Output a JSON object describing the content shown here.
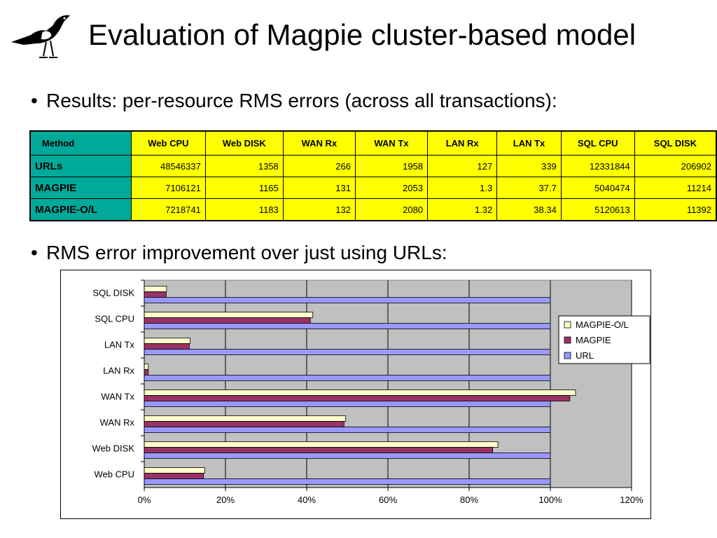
{
  "title": "Evaluation of Magpie cluster-based model",
  "bullets": {
    "results": "Results: per-resource RMS errors (across all transactions):",
    "improvement": "RMS error improvement over just using URLs:"
  },
  "bullet_glyph": "•",
  "logo_icon": "magpie-bird-icon",
  "table": {
    "columns": [
      "Method",
      "Web CPU",
      "Web DISK",
      "WAN Rx",
      "WAN Tx",
      "LAN Rx",
      "LAN Tx",
      "SQL CPU",
      "SQL DISK"
    ],
    "rows": [
      {
        "method": "URLs",
        "values": [
          "48546337",
          "1358",
          "266",
          "1958",
          "127",
          "339",
          "12331844",
          "206902"
        ]
      },
      {
        "method": "MAGPIE",
        "values": [
          "7106121",
          "1165",
          "131",
          "2053",
          "1.3",
          "37.7",
          "5040474",
          "11214"
        ]
      },
      {
        "method": "MAGPIE-O/L",
        "values": [
          "7218741",
          "1183",
          "132",
          "2080",
          "1.32",
          "38.34",
          "5120613",
          "11392"
        ]
      }
    ],
    "colors": {
      "header_bg": "#ffff00",
      "method_bg": "#00a99a",
      "cell_bg": "#ffff00"
    }
  },
  "chart_data": {
    "type": "bar",
    "orientation": "horizontal",
    "categories": [
      "Web CPU",
      "Web DISK",
      "WAN Rx",
      "WAN Tx",
      "LAN Rx",
      "LAN Tx",
      "SQL CPU",
      "SQL DISK"
    ],
    "series": [
      {
        "name": "URL",
        "color": "#9999ff",
        "values": [
          100,
          100,
          100,
          100,
          100,
          100,
          100,
          100
        ]
      },
      {
        "name": "MAGPIE",
        "color": "#993366",
        "values": [
          14.6,
          85.8,
          49.2,
          104.8,
          1.0,
          11.1,
          40.9,
          5.4
        ]
      },
      {
        "name": "MAGPIE-O/L",
        "color": "#ffffcc",
        "values": [
          14.9,
          87.1,
          49.6,
          106.2,
          1.0,
          11.3,
          41.5,
          5.5
        ]
      }
    ],
    "xlim": [
      0,
      120
    ],
    "xticks": [
      "0%",
      "20%",
      "40%",
      "60%",
      "80%",
      "100%",
      "120%"
    ],
    "grid": true,
    "plot_bg": "#c0c0c0",
    "legend": {
      "placement": "right",
      "entries": [
        "MAGPIE-O/L",
        "MAGPIE",
        "URL"
      ]
    },
    "title": "",
    "xlabel": "",
    "ylabel": ""
  }
}
